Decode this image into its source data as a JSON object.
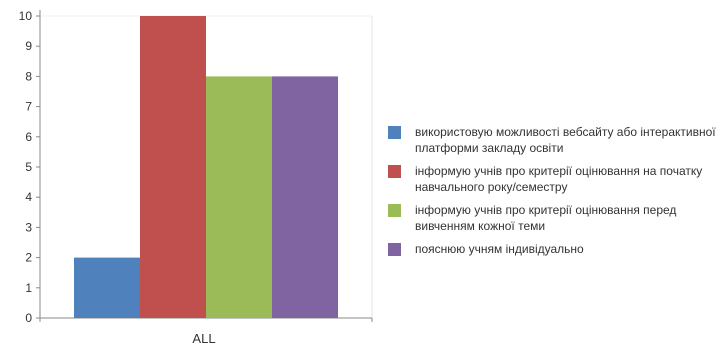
{
  "chart_data": {
    "type": "bar",
    "categories": [
      "ALL"
    ],
    "series": [
      {
        "name": "використовую можливості вебсайту або інтерактивної платформи закладу освіти",
        "values": [
          2
        ],
        "color": "#4f81bd"
      },
      {
        "name": "інформую учнів про критерії оцінювання на початку навчального року/семестру",
        "values": [
          10
        ],
        "color": "#c0504d"
      },
      {
        "name": "інформую учнів про критерії оцінювання перед вивченням кожної теми",
        "values": [
          8
        ],
        "color": "#9bbb59"
      },
      {
        "name": "пояснюю учням індивідуально",
        "values": [
          8
        ],
        "color": "#8064a2"
      }
    ],
    "ylim": [
      0,
      10
    ],
    "yticks": [
      "0",
      "1",
      "2",
      "3",
      "4",
      "5",
      "6",
      "7",
      "8",
      "9",
      "10"
    ],
    "grid": false,
    "legend_position": "right"
  }
}
